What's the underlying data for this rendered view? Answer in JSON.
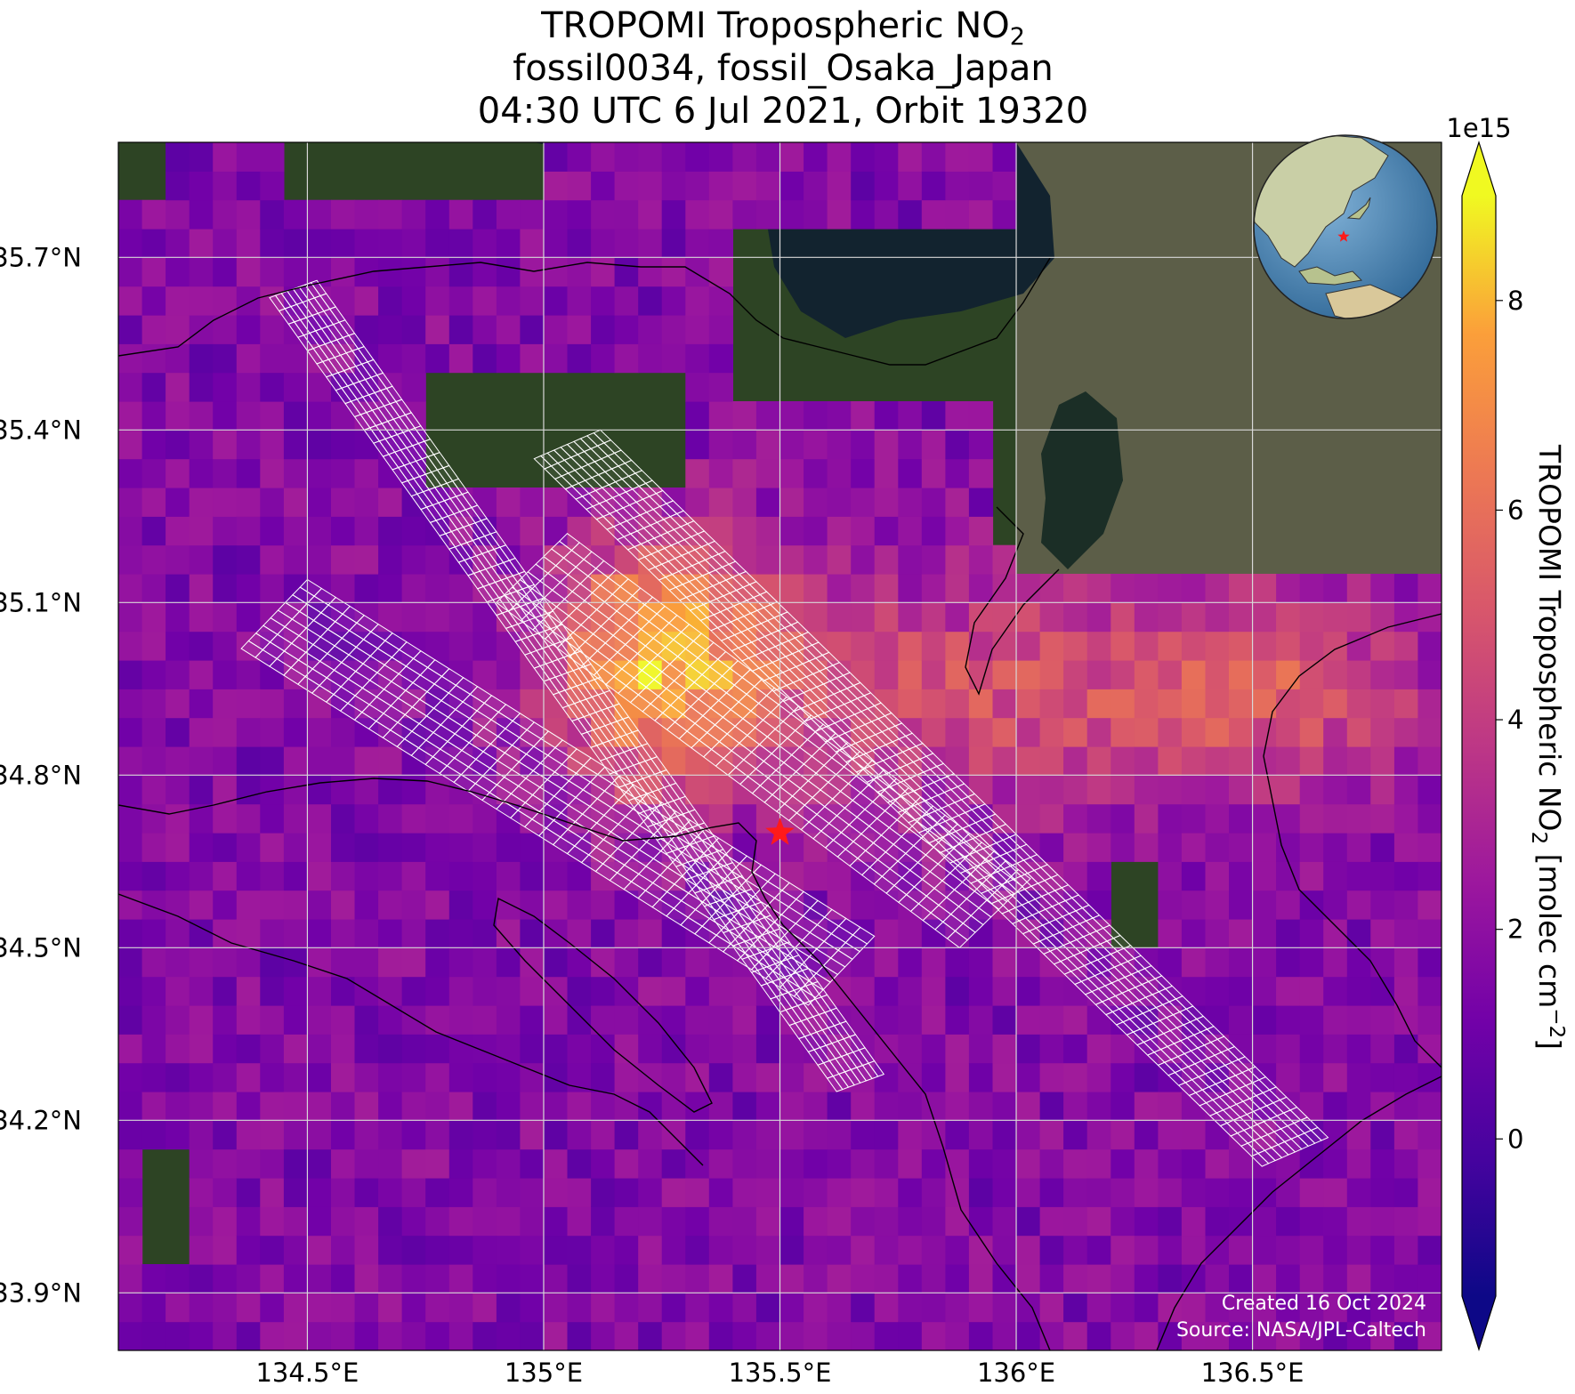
{
  "title": {
    "line1_main": "TROPOMI Tropospheric NO",
    "line1_sub": "2",
    "line2": "fossil0034, fossil_Osaka_Japan",
    "line3": "04:30 UTC 6 Jul 2021, Orbit 19320"
  },
  "map": {
    "lon_range": [
      134.1,
      136.9
    ],
    "lat_range": [
      33.8,
      35.9
    ],
    "lon_ticks": [
      {
        "value": 134.5,
        "label": "134.5°E"
      },
      {
        "value": 135.0,
        "label": "135°E"
      },
      {
        "value": 135.5,
        "label": "135.5°E"
      },
      {
        "value": 136.0,
        "label": "136°E"
      },
      {
        "value": 136.5,
        "label": "136.5°E"
      }
    ],
    "lat_ticks": [
      {
        "value": 33.9,
        "label": "33.9°N"
      },
      {
        "value": 34.2,
        "label": "34.2°N"
      },
      {
        "value": 34.5,
        "label": "34.5°N"
      },
      {
        "value": 34.8,
        "label": "34.8°N"
      },
      {
        "value": 35.1,
        "label": "35.1°N"
      },
      {
        "value": 35.4,
        "label": "35.4°N"
      },
      {
        "value": 35.7,
        "label": "35.7°N"
      }
    ],
    "gridlines": true,
    "target": {
      "name": "Osaka",
      "lon": 135.5,
      "lat": 34.7,
      "color": "#ff1a1a"
    },
    "pixel_colormap": "plasma",
    "target_mode_outline_color": "#ffffff"
  },
  "colorbar": {
    "label_main": "TROPOMI Tropospheric NO",
    "label_sub": "2",
    "label_units_pre": " [molec cm",
    "label_units_sup": "−2",
    "label_units_post": "]",
    "scale_label": "1e15",
    "range": [
      -1.5,
      9
    ],
    "ticks": [
      {
        "value": 0,
        "label": "0"
      },
      {
        "value": 2,
        "label": "2"
      },
      {
        "value": 4,
        "label": "4"
      },
      {
        "value": 6,
        "label": "6"
      },
      {
        "value": 8,
        "label": "8"
      }
    ],
    "extend": "both",
    "colormap": "plasma"
  },
  "inset_globe": {
    "marker_color": "#ff1a1a",
    "position": "top-right"
  },
  "credits": {
    "created": "Created 16 Oct 2024",
    "source": "Source: NASA/JPL-Caltech"
  },
  "colors": {
    "water": "#12232f",
    "land_forest": "#2d4424",
    "land_plain": "#6b6c55",
    "grid": "#d8d8d8",
    "coast": "#000000"
  }
}
